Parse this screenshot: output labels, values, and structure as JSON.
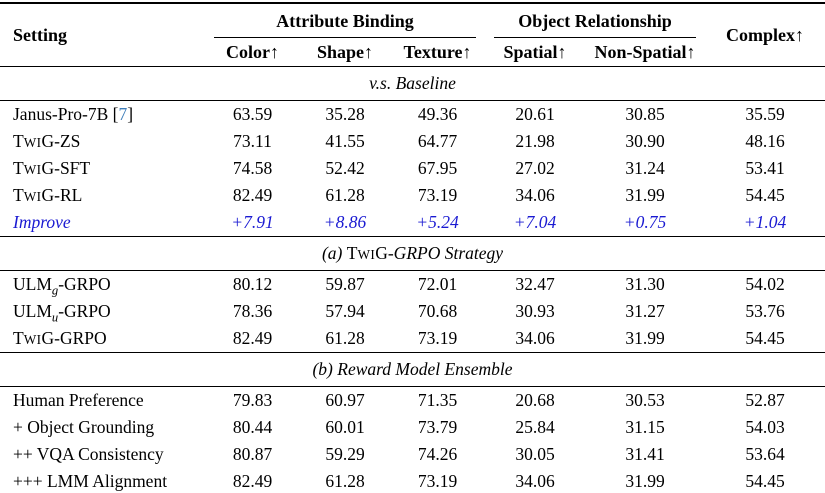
{
  "colors": {
    "background": "#ffffff",
    "text": "#000000",
    "rule": "#000000",
    "improve": "#1a1ad2",
    "cite": "#3d7dba"
  },
  "header": {
    "setting": "Setting",
    "complex": "Complex↑",
    "groups": [
      {
        "label": "Attribute Binding",
        "cols": [
          "Color↑",
          "Shape↑",
          "Texture↑"
        ]
      },
      {
        "label": "Object Relationship",
        "cols": [
          "Spatial↑",
          "Non-Spatial↑"
        ]
      }
    ]
  },
  "sections": [
    {
      "band": {
        "text": "v.s. Baseline"
      },
      "rows": [
        {
          "name_pre": "Janus-Pro-7B [",
          "cite": "7",
          "name_post": "]",
          "values": [
            "63.59",
            "35.28",
            "49.36",
            "20.61",
            "30.85",
            "35.59"
          ]
        },
        {
          "pre": "T",
          "sc": "WI",
          "post": "G-ZS",
          "values": [
            "73.11",
            "41.55",
            "64.77",
            "21.98",
            "30.90",
            "48.16"
          ]
        },
        {
          "pre": "T",
          "sc": "WI",
          "post": "G-SFT",
          "values": [
            "74.58",
            "52.42",
            "67.95",
            "27.02",
            "31.24",
            "53.41"
          ]
        },
        {
          "pre": "T",
          "sc": "WI",
          "post": "G-RL",
          "values": [
            "82.49",
            "61.28",
            "73.19",
            "34.06",
            "31.99",
            "54.45"
          ]
        },
        {
          "name": "Improve",
          "values": [
            "+7.91",
            "+8.86",
            "+5.24",
            "+7.04",
            "+0.75",
            "+1.04"
          ]
        }
      ]
    },
    {
      "band": {
        "pre": "(a) ",
        "sc_pre": "T",
        "sc": "WI",
        "sc_post": "G",
        "post": "-GRPO Strategy"
      },
      "rows": [
        {
          "pre": "ULM",
          "sub": "g",
          "post": "-GRPO",
          "values": [
            "80.12",
            "59.87",
            "72.01",
            "32.47",
            "31.30",
            "54.02"
          ]
        },
        {
          "pre": "ULM",
          "sub": "u",
          "post": "-GRPO",
          "values": [
            "78.36",
            "57.94",
            "70.68",
            "30.93",
            "31.27",
            "53.76"
          ]
        },
        {
          "pre": "T",
          "sc": "WI",
          "post": "G-GRPO",
          "values": [
            "82.49",
            "61.28",
            "73.19",
            "34.06",
            "31.99",
            "54.45"
          ]
        }
      ]
    },
    {
      "band": {
        "text": "(b) Reward Model Ensemble"
      },
      "rows": [
        {
          "name": "Human Preference",
          "values": [
            "79.83",
            "60.97",
            "71.35",
            "20.68",
            "30.53",
            "52.87"
          ]
        },
        {
          "name": "+ Object Grounding",
          "values": [
            "80.44",
            "60.01",
            "73.79",
            "25.84",
            "31.15",
            "54.03"
          ]
        },
        {
          "name": "++ VQA Consistency",
          "values": [
            "80.87",
            "59.29",
            "74.26",
            "30.05",
            "31.41",
            "53.64"
          ]
        },
        {
          "name": "+++ LMM Alignment",
          "values": [
            "82.49",
            "61.28",
            "73.19",
            "34.06",
            "31.99",
            "54.45"
          ]
        }
      ]
    }
  ]
}
